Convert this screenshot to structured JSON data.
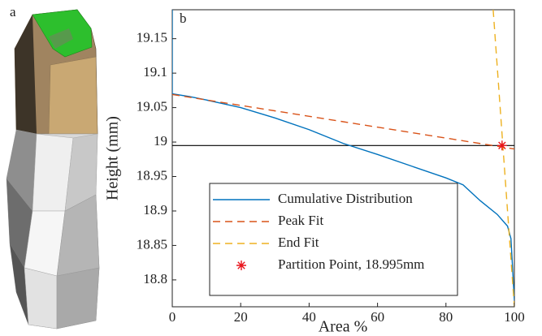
{
  "image_label": "a",
  "chart_data": {
    "type": "line",
    "panel_label": "b",
    "xlabel": "Area %",
    "ylabel": "Height (mm)",
    "xlim": [
      0,
      100
    ],
    "xticks": [
      0,
      20,
      40,
      60,
      80,
      100
    ],
    "ylim": [
      18.761,
      19.192
    ],
    "yticks": [
      18.8,
      18.85,
      18.9,
      18.95,
      19,
      19.05,
      19.1,
      19.15
    ],
    "hline": {
      "value": 18.995,
      "color": "#000000"
    },
    "legend": "lower center",
    "series": [
      {
        "name": "Cumulative Distribution",
        "color": "#0072bd",
        "style": "solid",
        "x": [
          0,
          0,
          5,
          10,
          20,
          30,
          40,
          50,
          60,
          70,
          80,
          85,
          90,
          95,
          98,
          99,
          100
        ],
        "values": [
          19.192,
          19.07,
          19.066,
          19.061,
          19.05,
          19.035,
          19.018,
          18.998,
          18.982,
          18.965,
          18.948,
          18.938,
          18.915,
          18.895,
          18.878,
          18.86,
          18.77
        ]
      },
      {
        "name": "Peak Fit",
        "color": "#d95319",
        "style": "dashed",
        "x": [
          0,
          100
        ],
        "values": [
          19.069,
          18.99
        ]
      },
      {
        "name": "End Fit",
        "color": "#edb120",
        "style": "dashed",
        "x": [
          93.8,
          100
        ],
        "values": [
          19.192,
          18.761
        ]
      },
      {
        "name": "Partition Point, 18.995mm",
        "color": "#e8141c",
        "style": "star",
        "x": [
          96.4
        ],
        "values": [
          18.995
        ]
      }
    ]
  }
}
